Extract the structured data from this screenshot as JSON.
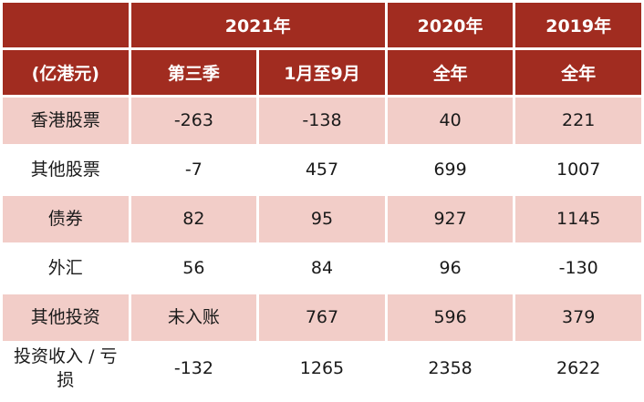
{
  "chart_data": {
    "type": "table",
    "title": "",
    "unit_label": "(亿港元)",
    "column_groups": [
      {
        "label": "2021年",
        "span": 2
      },
      {
        "label": "2020年",
        "span": 1
      },
      {
        "label": "2019年",
        "span": 1
      }
    ],
    "columns": [
      "第三季",
      "1月至9月",
      "全年",
      "全年"
    ],
    "rows": [
      {
        "label": "香港股票",
        "values": [
          "-263",
          "-138",
          "40",
          "221"
        ]
      },
      {
        "label": "其他股票",
        "values": [
          "-7",
          "457",
          "699",
          "1007"
        ]
      },
      {
        "label": "债券",
        "values": [
          "82",
          "95",
          "927",
          "1145"
        ]
      },
      {
        "label": "外汇",
        "values": [
          "56",
          "84",
          "96",
          "-130"
        ]
      },
      {
        "label": "其他投资",
        "values": [
          "未入账",
          "767",
          "596",
          "379"
        ]
      },
      {
        "label": "投资收入 / 亏损",
        "values": [
          "-132",
          "1265",
          "2358",
          "2622"
        ]
      }
    ],
    "layout": {
      "striped_rows": [
        0,
        2,
        4
      ],
      "colors": {
        "header_bg": "#A12C20",
        "header_text": "#FFFFFF",
        "stripe_bg": "#F2CDC8",
        "body_bg": "#FFFFFF",
        "body_text": "#1A1A1A"
      }
    }
  }
}
